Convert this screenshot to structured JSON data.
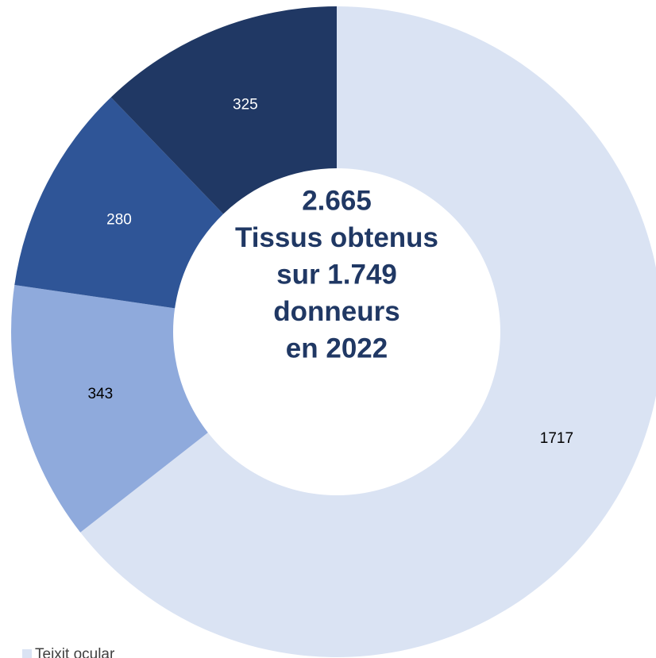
{
  "chart_data": {
    "type": "donut",
    "categories": [
      "Teixit ocular",
      null,
      null,
      null
    ],
    "values": [
      1717,
      343,
      280,
      325
    ],
    "colors": [
      "#dae3f3",
      "#8faadc",
      "#2f5597",
      "#203864"
    ],
    "label_colors": [
      "#000000",
      "#000000",
      "#ffffff",
      "#ffffff"
    ],
    "start_angle": 0,
    "direction": "clockwise",
    "center_text": [
      "2.665",
      "Tissus obtenus",
      "sur 1.749",
      "donneurs",
      "en 2022"
    ],
    "legend": "bottom-left"
  }
}
